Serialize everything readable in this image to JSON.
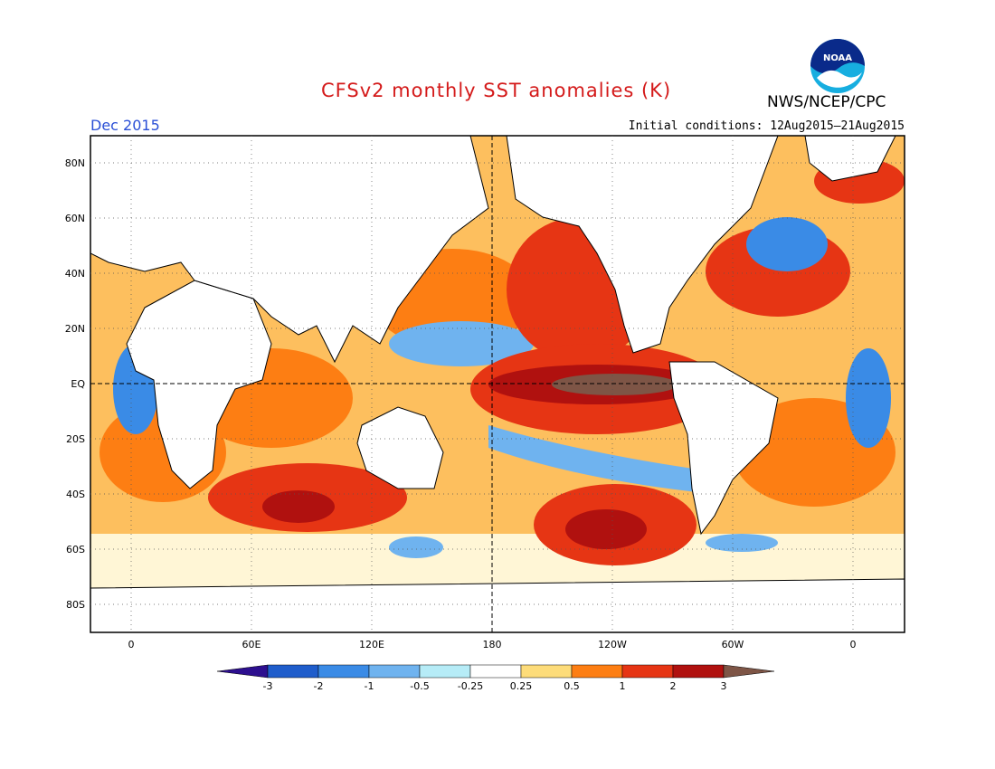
{
  "title": "CFSv2 monthly SST anomalies (K)",
  "organization": "NWS/NCEP/CPC",
  "logo_text": "NOAA",
  "month_label": "Dec 2015",
  "initial_conditions": "Initial conditions: 12Aug2015–21Aug2015",
  "lat_ticks": [
    "80N",
    "60N",
    "40N",
    "20N",
    "EQ",
    "20S",
    "40S",
    "60S",
    "80S"
  ],
  "lon_ticks": [
    "0",
    "60E",
    "120E",
    "180",
    "120W",
    "60W",
    "0"
  ],
  "colorbar": {
    "labels": [
      "-3",
      "-2",
      "-1",
      "-0.5",
      "-0.25",
      "0.25",
      "0.5",
      "1",
      "2",
      "3"
    ],
    "colors": [
      "#2d0f8f",
      "#1f5dcb",
      "#3a8be6",
      "#6fb3ef",
      "#b6ecf7",
      "#ffffff",
      "#fddc7a",
      "#fd7e13",
      "#e63514",
      "#b0110f",
      "#7e5546"
    ]
  },
  "colors": {
    "title": "#d41a1a",
    "month": "#2a4fd6",
    "land": "#ffffff",
    "warm_strong": "#b0110f",
    "warm": "#e63514",
    "warm_mild": "#fd7e13",
    "warm_weak": "#fddc7a",
    "cool_weak": "#b6ecf7",
    "cool": "#6fb3ef",
    "cool_mid": "#3a8be6",
    "extreme_warm": "#7e5546"
  }
}
